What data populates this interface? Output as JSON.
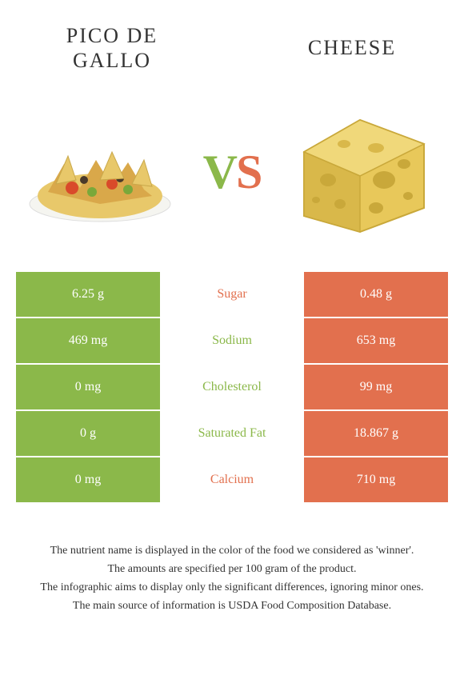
{
  "header": {
    "left_title": "PICO DE GALLO",
    "right_title": "CHEESE",
    "vs_v": "V",
    "vs_s": "S"
  },
  "colors": {
    "left": "#8bb84a",
    "right": "#e2704e",
    "text": "#333333",
    "bg": "#ffffff"
  },
  "rows": [
    {
      "left": "6.25 g",
      "label": "Sugar",
      "right": "0.48 g",
      "winner": "right"
    },
    {
      "left": "469 mg",
      "label": "Sodium",
      "right": "653 mg",
      "winner": "left"
    },
    {
      "left": "0 mg",
      "label": "Cholesterol",
      "right": "99 mg",
      "winner": "left"
    },
    {
      "left": "0 g",
      "label": "Saturated Fat",
      "right": "18.867 g",
      "winner": "left"
    },
    {
      "left": "0 mg",
      "label": "Calcium",
      "right": "710 mg",
      "winner": "right"
    }
  ],
  "footnotes": [
    "The nutrient name is displayed in the color of the food we considered as 'winner'.",
    "The amounts are specified per 100 gram of the product.",
    "The infographic aims to display only the significant differences, ignoring minor ones.",
    "The main source of information is USDA Food Composition Database."
  ]
}
